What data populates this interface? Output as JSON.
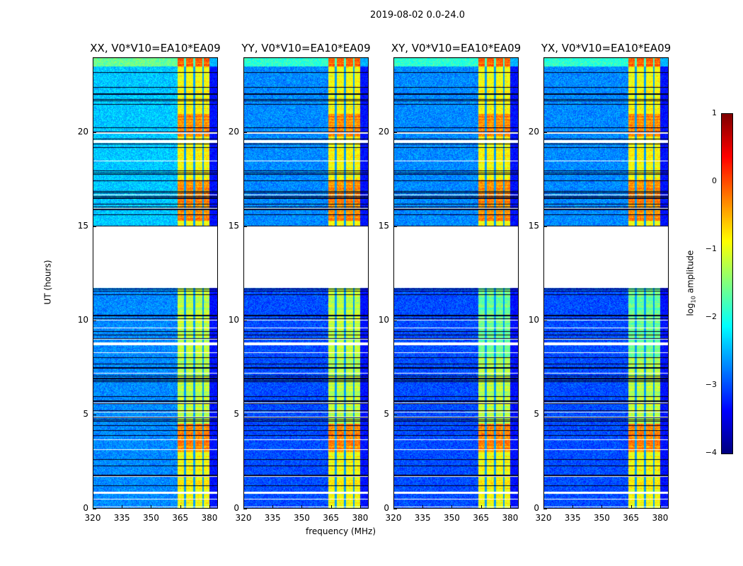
{
  "chart_data": {
    "type": "heatmap",
    "title": "2019-08-02 0.0-24.0",
    "xlabel": "frequency (MHz)",
    "ylabel": "UT (hours)",
    "xlim": [
      320,
      384.4
    ],
    "ylim": [
      0,
      24
    ],
    "xticks": [
      320,
      335,
      350,
      365,
      380
    ],
    "yticks": [
      0,
      5,
      10,
      15,
      20
    ],
    "panels": [
      {
        "title": "XX, V0*V10=EA10*EA09",
        "background_level": -2.7
      },
      {
        "title": "YY, V0*V10=EA10*EA09",
        "background_level": -3.0
      },
      {
        "title": "XY, V0*V10=EA10*EA09",
        "background_level": -3.0
      },
      {
        "title": "YX, V0*V10=EA10*EA09",
        "background_level": -3.0
      }
    ],
    "bright_band_mhz": [
      363.5,
      380
    ],
    "dim_channels_mhz": [
      367.5,
      372.3,
      376.8
    ],
    "flagged_gaps_hours": [
      [
        11.75,
        15.0
      ],
      [
        19.45,
        19.6
      ],
      [
        0.8,
        0.9
      ],
      [
        8.7,
        8.85
      ]
    ],
    "strong_intervals_hours": [
      [
        15.3,
        17.5
      ],
      [
        19.8,
        21.0
      ],
      [
        3.0,
        4.5
      ]
    ],
    "colorbar": {
      "label": "log10 amplitude",
      "label_main": "log",
      "label_sub": "10",
      "label_rest": " amplitude",
      "range": [
        -4,
        1
      ],
      "ticks": [
        "1",
        "0",
        "−1",
        "−2",
        "−3",
        "−4"
      ],
      "colormap": "jet"
    }
  }
}
